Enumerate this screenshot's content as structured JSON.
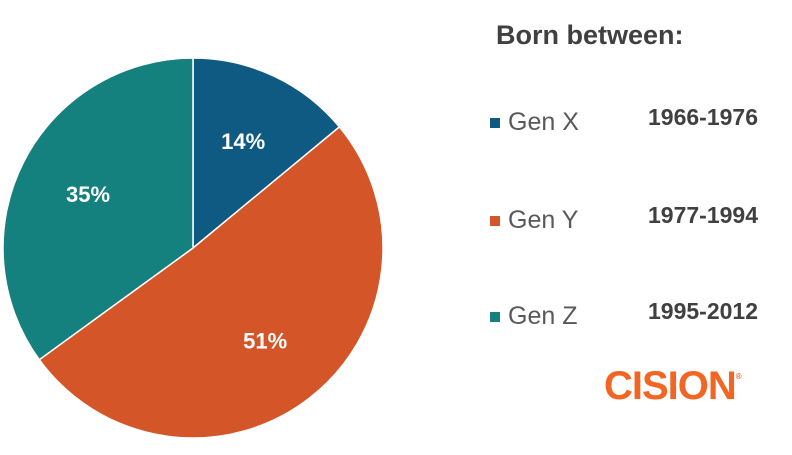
{
  "chart_data": {
    "type": "pie",
    "slices": [
      {
        "label": "Gen X",
        "value": 14,
        "display": "14%",
        "range": "1966-1976",
        "color": "#0f5a82"
      },
      {
        "label": "Gen Y",
        "value": 51,
        "display": "51%",
        "range": "1977-1994",
        "color": "#d45527"
      },
      {
        "label": "Gen Z",
        "value": 35,
        "display": "35%",
        "range": "1995-2012",
        "color": "#15817e"
      }
    ],
    "legend_title": "Born between:",
    "legend_position": "right",
    "start_angle": "12 o'clock, clockwise"
  },
  "brand": {
    "logo_text": "CISION",
    "registered_mark": "®",
    "logo_color": "#f26522"
  }
}
